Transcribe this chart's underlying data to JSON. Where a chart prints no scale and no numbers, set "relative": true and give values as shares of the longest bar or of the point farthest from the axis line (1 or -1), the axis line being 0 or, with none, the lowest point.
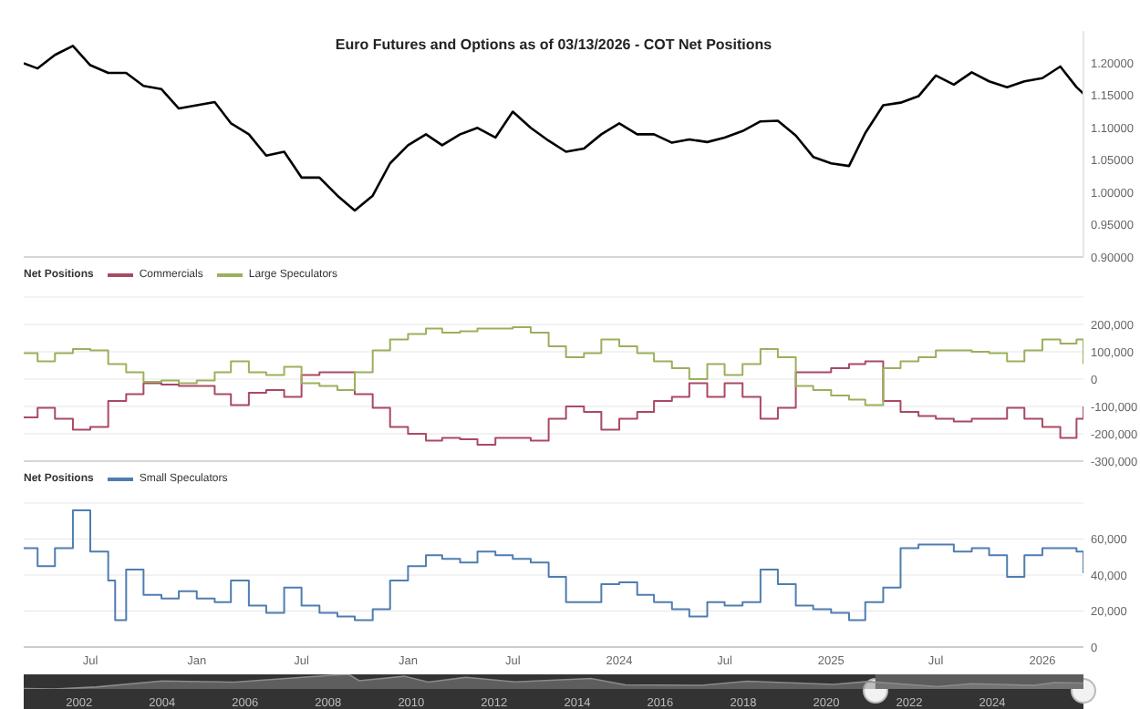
{
  "chart_data": [
    {
      "type": "line",
      "title": "Euro Futures and Options as of 03/13/2026 - COT Net Positions",
      "x": [
        "2021-03-08",
        "2021-04-01",
        "2021-05-01",
        "2021-06-01",
        "2021-07-01",
        "2021-08-01",
        "2021-09-01",
        "2021-10-01",
        "2021-11-01",
        "2021-12-01",
        "2022-01-01",
        "2022-02-01",
        "2022-03-01",
        "2022-04-01",
        "2022-05-01",
        "2022-06-01",
        "2022-07-01",
        "2022-08-01",
        "2022-09-01",
        "2022-10-01",
        "2022-11-01",
        "2022-12-01",
        "2023-01-01",
        "2023-02-01",
        "2023-03-01",
        "2023-04-01",
        "2023-05-01",
        "2023-06-01",
        "2023-07-01",
        "2023-08-01",
        "2023-09-01",
        "2023-10-01",
        "2023-11-01",
        "2023-12-01",
        "2024-01-01",
        "2024-02-01",
        "2024-03-01",
        "2024-04-01",
        "2024-05-01",
        "2024-06-01",
        "2024-07-01",
        "2024-08-01",
        "2024-09-01",
        "2024-10-01",
        "2024-11-01",
        "2024-12-01",
        "2025-01-01",
        "2025-02-01",
        "2025-03-01",
        "2025-04-01",
        "2025-05-01",
        "2025-06-01",
        "2025-07-01",
        "2025-08-01",
        "2025-09-01",
        "2025-10-01",
        "2025-11-01",
        "2025-12-01",
        "2026-01-01",
        "2026-02-01",
        "2026-03-01",
        "2026-03-13"
      ],
      "series": [
        {
          "color": "#000000",
          "values": [
            1.2,
            1.192,
            1.213,
            1.227,
            1.197,
            1.185,
            1.185,
            1.165,
            1.16,
            1.13,
            1.135,
            1.14,
            1.107,
            1.09,
            1.057,
            1.063,
            1.023,
            1.023,
            0.995,
            0.972,
            0.995,
            1.045,
            1.073,
            1.09,
            1.073,
            1.09,
            1.1,
            1.085,
            1.125,
            1.1,
            1.08,
            1.063,
            1.068,
            1.09,
            1.107,
            1.09,
            1.09,
            1.077,
            1.082,
            1.078,
            1.085,
            1.095,
            1.11,
            1.111,
            1.088,
            1.055,
            1.045,
            1.041,
            1.092,
            1.135,
            1.139,
            1.149,
            1.181,
            1.167,
            1.186,
            1.172,
            1.163,
            1.172,
            1.177,
            1.195,
            1.163,
            1.153
          ]
        }
      ],
      "xlim": [
        "2021-03-08",
        "2026-03-13"
      ],
      "ylim": [
        0.9,
        1.25
      ],
      "yticks": [
        {
          "value": 0.9,
          "label": "0.90000"
        },
        {
          "value": 0.95,
          "label": "0.95000"
        },
        {
          "value": 1.0,
          "label": "1.00000"
        },
        {
          "value": 1.05,
          "label": "1.05000"
        },
        {
          "value": 1.1,
          "label": "1.10000"
        },
        {
          "value": 1.15,
          "label": "1.15000"
        },
        {
          "value": 1.2,
          "label": "1.20000"
        }
      ],
      "tick_labels": "y"
    },
    {
      "type": "step",
      "legend_title": "Net Positions",
      "legend": "top left",
      "grid": "y",
      "x": [
        "2021-03-08",
        "2021-04-01",
        "2021-05-01",
        "2021-06-01",
        "2021-07-01",
        "2021-08-01",
        "2021-09-01",
        "2021-10-01",
        "2021-11-01",
        "2021-12-01",
        "2022-01-01",
        "2022-02-01",
        "2022-03-01",
        "2022-04-01",
        "2022-05-01",
        "2022-06-01",
        "2022-07-01",
        "2022-08-01",
        "2022-09-01",
        "2022-10-01",
        "2022-11-01",
        "2022-12-01",
        "2023-01-01",
        "2023-02-01",
        "2023-03-01",
        "2023-04-01",
        "2023-05-01",
        "2023-06-01",
        "2023-07-01",
        "2023-08-01",
        "2023-09-01",
        "2023-10-01",
        "2023-11-01",
        "2023-12-01",
        "2024-01-01",
        "2024-02-01",
        "2024-03-01",
        "2024-04-01",
        "2024-05-01",
        "2024-06-01",
        "2024-07-01",
        "2024-08-01",
        "2024-09-01",
        "2024-10-01",
        "2024-11-01",
        "2024-12-01",
        "2025-01-01",
        "2025-02-01",
        "2025-03-01",
        "2025-04-01",
        "2025-05-01",
        "2025-06-01",
        "2025-07-01",
        "2025-08-01",
        "2025-09-01",
        "2025-10-01",
        "2025-11-01",
        "2025-12-01",
        "2026-01-01",
        "2026-02-01",
        "2026-03-01",
        "2026-03-13"
      ],
      "series": [
        {
          "name": "Commercials",
          "color": "#a94a63",
          "values": [
            -140000,
            -105000,
            -145000,
            -185000,
            -175000,
            -80000,
            -55000,
            -15000,
            -20000,
            -25000,
            -25000,
            -55000,
            -95000,
            -50000,
            -40000,
            -65000,
            15000,
            25000,
            25000,
            -55000,
            -105000,
            -175000,
            -200000,
            -225000,
            -215000,
            -220000,
            -240000,
            -215000,
            -215000,
            -225000,
            -145000,
            -100000,
            -120000,
            -185000,
            -145000,
            -120000,
            -80000,
            -65000,
            -15000,
            -65000,
            -15000,
            -65000,
            -145000,
            -105000,
            25000,
            25000,
            40000,
            55000,
            65000,
            -80000,
            -120000,
            -135000,
            -145000,
            -155000,
            -145000,
            -145000,
            -105000,
            -145000,
            -175000,
            -215000,
            -145000,
            -100000
          ]
        },
        {
          "name": "Large Speculators",
          "color": "#9bb05c",
          "values": [
            95000,
            65000,
            95000,
            110000,
            105000,
            55000,
            25000,
            -10000,
            -5000,
            -15000,
            -5000,
            25000,
            65000,
            25000,
            15000,
            45000,
            -15000,
            -25000,
            -40000,
            25000,
            105000,
            145000,
            165000,
            185000,
            170000,
            175000,
            185000,
            185000,
            190000,
            170000,
            120000,
            80000,
            95000,
            145000,
            120000,
            95000,
            65000,
            40000,
            0,
            55000,
            15000,
            55000,
            110000,
            80000,
            -25000,
            -40000,
            -60000,
            -75000,
            -95000,
            40000,
            65000,
            80000,
            105000,
            105000,
            100000,
            95000,
            65000,
            105000,
            145000,
            130000,
            145000,
            55000
          ]
        }
      ],
      "xlim": [
        "2021-03-08",
        "2026-03-13"
      ],
      "ylim": [
        -300000,
        300000
      ],
      "yticks": [
        {
          "value": -300000,
          "label": "-300,000"
        },
        {
          "value": -200000,
          "label": "-200,000"
        },
        {
          "value": -100000,
          "label": "-100,000"
        },
        0,
        {
          "value": 100000,
          "label": "100,000"
        },
        {
          "value": 200000,
          "label": "200,000"
        },
        {
          "value": 300000,
          "label": null
        }
      ],
      "tick_labels": "y"
    },
    {
      "type": "step",
      "legend_title": "Net Positions",
      "legend": "top left",
      "grid": "y",
      "x": [
        "2021-03-08",
        "2021-04-01",
        "2021-05-01",
        "2021-06-01",
        "2021-07-01",
        "2021-08-01",
        "2021-08-13",
        "2021-09-01",
        "2021-10-01",
        "2021-11-01",
        "2021-12-01",
        "2022-01-01",
        "2022-02-01",
        "2022-03-01",
        "2022-04-01",
        "2022-05-01",
        "2022-06-01",
        "2022-07-01",
        "2022-08-01",
        "2022-09-01",
        "2022-10-01",
        "2022-11-01",
        "2022-12-01",
        "2023-01-01",
        "2023-02-01",
        "2023-03-01",
        "2023-04-01",
        "2023-05-01",
        "2023-06-01",
        "2023-07-01",
        "2023-08-01",
        "2023-09-01",
        "2023-10-01",
        "2023-11-01",
        "2023-12-01",
        "2024-01-01",
        "2024-02-01",
        "2024-03-01",
        "2024-04-01",
        "2024-05-01",
        "2024-06-01",
        "2024-07-01",
        "2024-08-01",
        "2024-09-01",
        "2024-10-01",
        "2024-11-01",
        "2024-12-01",
        "2025-01-01",
        "2025-02-01",
        "2025-03-01",
        "2025-04-01",
        "2025-05-01",
        "2025-06-01",
        "2025-07-01",
        "2025-08-01",
        "2025-09-01",
        "2025-10-01",
        "2025-11-01",
        "2025-12-01",
        "2026-01-01",
        "2026-02-01",
        "2026-03-01",
        "2026-03-13"
      ],
      "series": [
        {
          "name": "Small Speculators",
          "color": "#4f7db0",
          "values": [
            55000,
            45000,
            55000,
            76000,
            53000,
            37000,
            15000,
            43000,
            29000,
            27000,
            31000,
            27000,
            25000,
            37000,
            23000,
            19000,
            33000,
            23000,
            19000,
            17000,
            15000,
            21000,
            37000,
            45000,
            51000,
            49000,
            47000,
            53000,
            51000,
            49000,
            47000,
            39000,
            25000,
            25000,
            35000,
            36000,
            29000,
            25000,
            21000,
            17000,
            25000,
            23000,
            25000,
            43000,
            35000,
            23000,
            21000,
            19000,
            15000,
            25000,
            33000,
            55000,
            57000,
            57000,
            53000,
            55000,
            51000,
            39000,
            51000,
            55000,
            55000,
            53000,
            41000
          ]
        }
      ],
      "xlim": [
        "2021-03-08",
        "2026-03-13"
      ],
      "xticks": [
        {
          "value": "2021-07-01",
          "label": "Jul"
        },
        {
          "value": "2022-01-01",
          "label": "Jan"
        },
        {
          "value": "2022-07-01",
          "label": "Jul"
        },
        {
          "value": "2023-01-01",
          "label": "Jan"
        },
        {
          "value": "2023-07-01",
          "label": "Jul"
        },
        {
          "value": "2024-01-01",
          "label": "2024"
        },
        {
          "value": "2024-07-01",
          "label": "Jul"
        },
        {
          "value": "2025-01-01",
          "label": "2025"
        },
        {
          "value": "2025-07-01",
          "label": "Jul"
        },
        {
          "value": "2026-01-01",
          "label": "2026"
        }
      ],
      "ylim": [
        0,
        80000
      ],
      "yticks": [
        0,
        {
          "value": 20000,
          "label": "20,000"
        },
        {
          "value": 40000,
          "label": "40,000"
        },
        {
          "value": 60000,
          "label": "60,000"
        },
        {
          "value": 80000,
          "label": null
        }
      ]
    },
    {
      "type": "area",
      "relative": true,
      "tick_labels": "x",
      "x": [
        "2000-09-01",
        "2001-06-01",
        "2002-06-01",
        "2004-01-01",
        "2005-10-01",
        "2008-04-01",
        "2008-07-01",
        "2008-10-01",
        "2009-11-01",
        "2010-06-01",
        "2011-05-01",
        "2012-07-01",
        "2014-05-01",
        "2015-03-01",
        "2017-01-01",
        "2018-02-01",
        "2020-03-01",
        "2021-01-01",
        "2022-09-01",
        "2023-07-01",
        "2025-01-01",
        "2025-07-01",
        "2026-03-13"
      ],
      "series": [
        {
          "color": "#8a8a8a",
          "values": [
            0.03,
            0,
            0.13,
            0.55,
            0.47,
            0.97,
            1,
            0.56,
            0.87,
            0.47,
            0.8,
            0.48,
            0.72,
            0.28,
            0.25,
            0.53,
            0.31,
            0.51,
            0.16,
            0.36,
            0.24,
            0.44,
            0.41
          ]
        }
      ],
      "xlim": [
        "2000-09-01",
        "2026-03-13"
      ],
      "xticks": [
        "2002",
        "2004",
        "2006",
        "2008",
        "2010",
        "2012",
        "2014",
        "2016",
        "2018",
        "2020",
        "2022",
        "2024"
      ],
      "bands": [
        {
          "axis": "x",
          "from": "2021-03-08",
          "to": "2026-03-13",
          "color": "#5c5c5c"
        }
      ]
    }
  ]
}
